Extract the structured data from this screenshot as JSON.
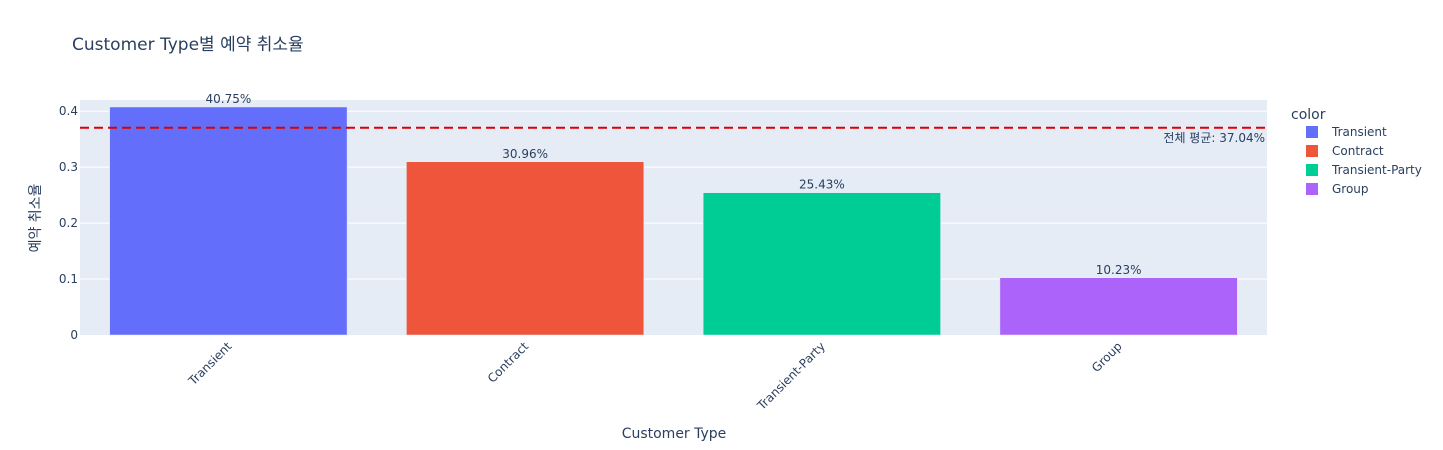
{
  "chart_data": {
    "type": "bar",
    "title": "Customer Type별 예약 취소율",
    "xlabel": "Customer Type",
    "ylabel": "예약 취소율",
    "categories": [
      "Transient",
      "Contract",
      "Transient-Party",
      "Group"
    ],
    "values": [
      0.4075,
      0.3096,
      0.2543,
      0.1023
    ],
    "bar_labels": [
      "40.75%",
      "30.96%",
      "25.43%",
      "10.23%"
    ],
    "ylim": [
      0,
      0.42
    ],
    "yticks": [
      0,
      0.1,
      0.2,
      0.3,
      0.4
    ],
    "ytick_labels": [
      "0",
      "0.1",
      "0.2",
      "0.3",
      "0.4"
    ],
    "grid": true,
    "legend": {
      "title": "color",
      "placement": "right",
      "entries": [
        "Transient",
        "Contract",
        "Transient-Party",
        "Group"
      ]
    },
    "colors": [
      "#636efa",
      "#ef553b",
      "#00cc96",
      "#ab63fa"
    ],
    "plot_bg": "#e5ecf6",
    "reference_line": {
      "value": 0.3704,
      "label": "전체 평균: 37.04%",
      "color": "#dd0000",
      "style": "dashed"
    }
  }
}
